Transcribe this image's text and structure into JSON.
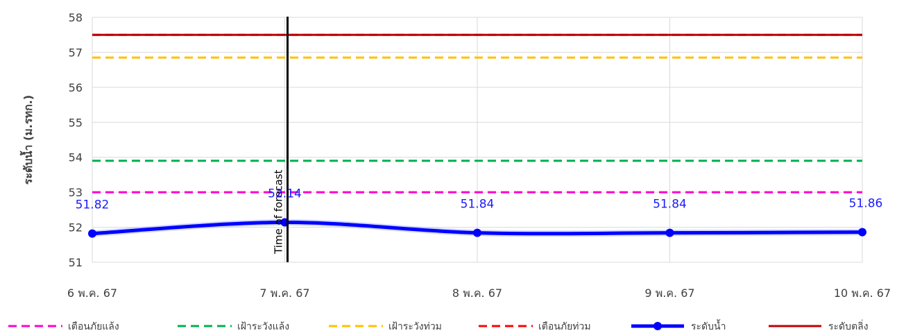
{
  "chart_data": {
    "type": "line",
    "ylabel": "ระดับน้ำ (ม.รทก.)",
    "xlabel": "",
    "categories": [
      "6 พ.ค. 67",
      "7 พ.ค. 67",
      "8 พ.ค. 67",
      "9 พ.ค. 67",
      "10 พ.ค. 67"
    ],
    "ylim": [
      51,
      58
    ],
    "yticks": [
      51,
      52,
      53,
      54,
      55,
      56,
      57,
      58
    ],
    "grid": true,
    "series": [
      {
        "name": "ระดับน้ำ",
        "values": [
          51.82,
          52.14,
          51.84,
          51.84,
          51.86
        ],
        "labels": [
          "51.82",
          "52.14",
          "51.84",
          "51.84",
          "51.86"
        ],
        "color": "#0000ff",
        "style": "solid-marker"
      }
    ],
    "thresholds": [
      {
        "name": "เตือนภัยแล้ง",
        "value": 53.0,
        "color": "#ff00cc",
        "style": "dashed"
      },
      {
        "name": "เฝ้าระวังแล้ง",
        "value": 53.9,
        "color": "#00b050",
        "style": "dashed"
      },
      {
        "name": "เฝ้าระวังท่วม",
        "value": 56.85,
        "color": "#ffc000",
        "style": "dashed"
      },
      {
        "name": "เตือนภัยท่วม",
        "value": 57.5,
        "color": "#ff0000",
        "style": "dashed"
      },
      {
        "name": "ระดับตลิ่ง",
        "value": 57.5,
        "color": "#c00000",
        "style": "solid"
      }
    ],
    "forecast_marker": {
      "label": "Time of forecast",
      "x": "7 พ.ค. 67"
    },
    "legend_order": [
      "เตือนภัยแล้ง",
      "เฝ้าระวังแล้ง",
      "เฝ้าระวังท่วม",
      "เตือนภัยท่วม",
      "ระดับน้ำ",
      "ระดับตลิ่ง"
    ],
    "legend_position": "bottom"
  }
}
